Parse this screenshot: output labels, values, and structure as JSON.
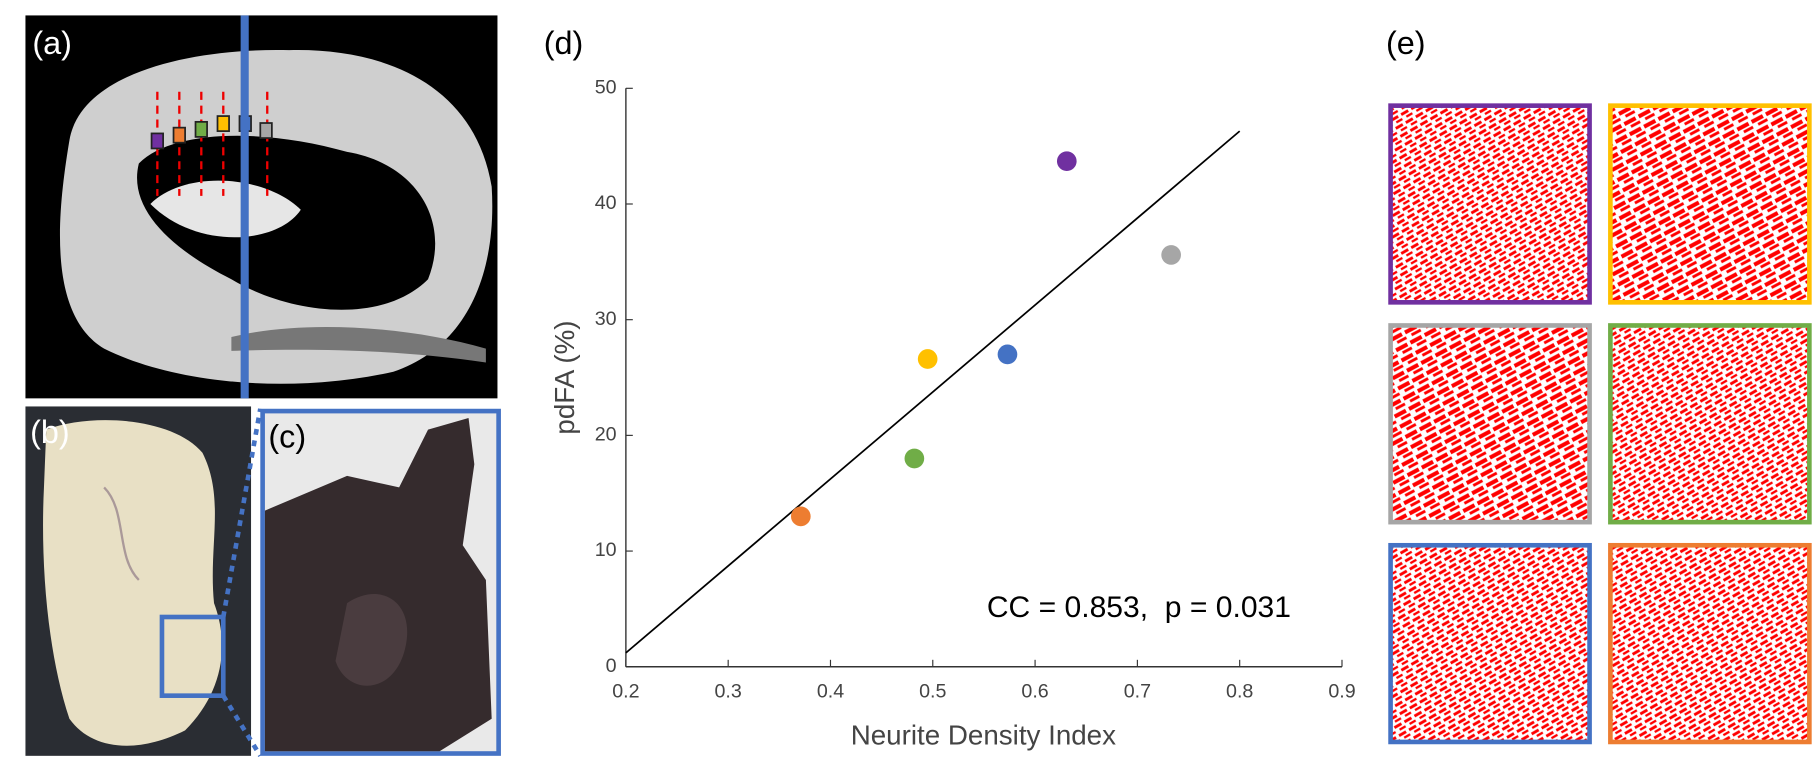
{
  "panel_labels": [
    "(a)",
    "(b)",
    "(c)",
    "(d)",
    "(e)"
  ],
  "chart_data": {
    "type": "scatter",
    "xlabel": "Neurite Density Index",
    "ylabel": "pdFA (%)",
    "annotation": "CC = 0.853,  p = 0.031",
    "x": [
      0.631,
      0.733,
      0.495,
      0.573,
      0.482,
      0.371
    ],
    "values": [
      43.7,
      35.6,
      26.6,
      27.0,
      18.0,
      13.0
    ],
    "colors": [
      "#7030a0",
      "#a6a6a6",
      "#ffc000",
      "#4472c4",
      "#70ad47",
      "#ed7d31"
    ],
    "fit_line": {
      "x": [
        0.2,
        0.8
      ],
      "y": [
        1.2,
        46.3
      ]
    },
    "xlim": [
      0.2,
      0.9
    ],
    "xticks": [
      0.2,
      0.3,
      0.4,
      0.5,
      0.6,
      0.7,
      0.8,
      0.9
    ],
    "ylim": [
      0,
      50
    ],
    "yticks": [
      0,
      10,
      20,
      30,
      40,
      50
    ],
    "grid": false
  }
}
